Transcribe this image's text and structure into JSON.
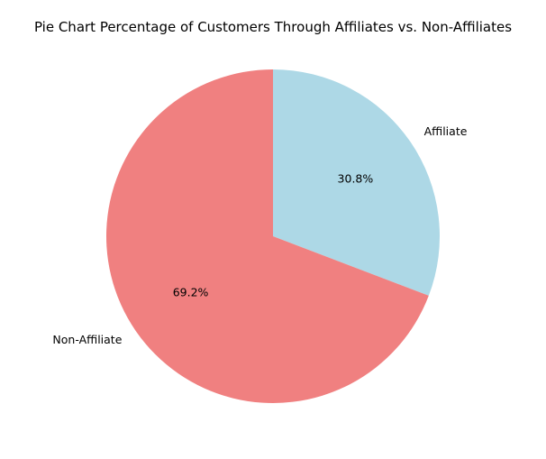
{
  "chart_data": {
    "type": "pie",
    "title": "Pie Chart Percentage of Customers Through Affiliates vs. Non-Affiliates",
    "slices": [
      {
        "label": "Affiliate",
        "value": 30.8,
        "pct_label": "30.8%",
        "color": "#add8e6"
      },
      {
        "label": "Non-Affiliate",
        "value": 69.2,
        "pct_label": "69.2%",
        "color": "#f08080"
      }
    ],
    "start_angle": 90,
    "direction": "clockwise"
  }
}
